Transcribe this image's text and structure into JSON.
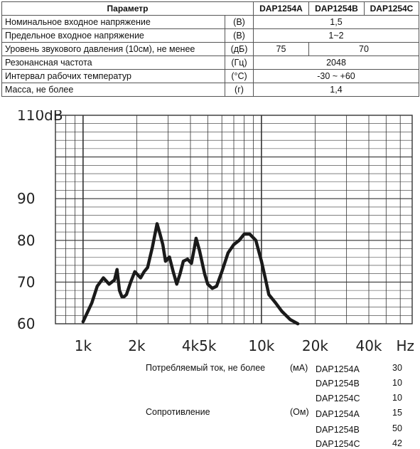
{
  "table": {
    "headers": [
      "Параметр",
      "DAP1254A",
      "DAP1254B",
      "DAP1254C"
    ],
    "rows": [
      {
        "name": "Номинальное входное напряжение",
        "unit": "(В)",
        "value": "1,5"
      },
      {
        "name": "Предельное входное напряжение",
        "unit": "(В)",
        "value": "1~2"
      },
      {
        "name": "Уровень звукового давления (10см), не менее",
        "unit": "(дБ)",
        "value_a": "75",
        "value_bc": "70"
      },
      {
        "name": "Резонансная частота",
        "unit": "(Гц)",
        "value": "2048"
      },
      {
        "name": "Интервал рабочих температур",
        "unit": "(°C)",
        "value": "-30 ~ +60"
      },
      {
        "name": "Масса, не более",
        "unit": "(г)",
        "value": "1,4"
      }
    ]
  },
  "chart_data": {
    "type": "line",
    "x_scale": "log",
    "xlim": [
      700,
      70000
    ],
    "ylim": [
      60,
      110
    ],
    "y_ticks": [
      "60",
      "70",
      "80",
      "90",
      "110dB"
    ],
    "x_ticks": [
      "1k",
      "2k",
      "4k",
      "5k",
      "10k",
      "20k",
      "40k",
      "Hz"
    ],
    "series": [
      {
        "x": [
          1000,
          1120,
          1200,
          1300,
          1400,
          1500,
          1550,
          1600,
          1650,
          1700,
          1750,
          1850,
          1950,
          2100,
          2200,
          2300,
          2450,
          2600,
          2700,
          2800,
          2900,
          3050,
          3200,
          3350,
          3500,
          3650,
          3850,
          4050,
          4200,
          4300,
          4500,
          4800,
          5000,
          5300,
          5600,
          6000,
          6500,
          7000,
          7500,
          8000,
          8600,
          9300,
          10000,
          10500,
          11000,
          12000,
          13000,
          14500,
          16000
        ],
        "y": [
          60.5,
          65,
          69,
          71,
          69.5,
          70.5,
          73,
          68,
          66.5,
          66.5,
          67,
          70,
          72.5,
          71,
          72.5,
          73.5,
          78.5,
          84,
          81.5,
          79,
          75,
          76,
          72.5,
          69.5,
          72,
          75,
          75.5,
          74.5,
          78,
          80.5,
          77.5,
          72,
          69.5,
          68.5,
          69,
          72.5,
          77,
          79,
          80,
          81.5,
          81.5,
          80,
          75,
          71,
          67,
          65,
          63,
          61,
          60
        ]
      }
    ]
  },
  "consumption": {
    "label": "Потребляемый ток, не более",
    "unit": "(мА)",
    "rows": [
      {
        "model": "DAP1254A",
        "value": "30"
      },
      {
        "model": "DAP1254B",
        "value": "10"
      },
      {
        "model": "DAP1254C",
        "value": "10"
      }
    ]
  },
  "resistance": {
    "label": "Сопротивление",
    "unit": "(Ом)",
    "rows": [
      {
        "model": "DAP1254A",
        "value": "15"
      },
      {
        "model": "DAP1254B",
        "value": "50"
      },
      {
        "model": "DAP1254C",
        "value": "42"
      }
    ]
  },
  "colors": {
    "curve": "#1a1a1a",
    "grid": "#333333"
  }
}
